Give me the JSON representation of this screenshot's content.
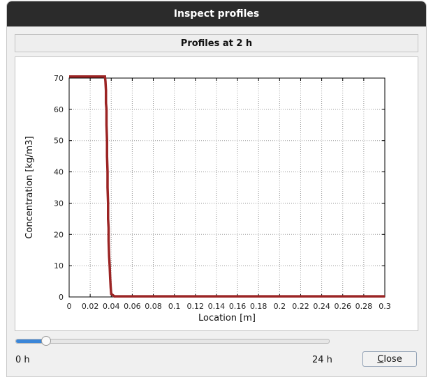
{
  "window": {
    "title": "Inspect profiles"
  },
  "header": {
    "title": "Profiles at 2 h"
  },
  "slider": {
    "min_label": "0 h",
    "max_label": "24 h",
    "value": 2,
    "min": 0,
    "max": 24,
    "accent": "#3b86d8"
  },
  "close_button": {
    "mnemonic": "C",
    "rest": "lose"
  },
  "chart_data": {
    "type": "line",
    "xlabel": "Location [m]",
    "ylabel": "Concentration [kg/m3]",
    "xlim": [
      0,
      0.3
    ],
    "ylim": [
      0,
      70
    ],
    "xticks": [
      "0",
      "0.02",
      "0.04",
      "0.06",
      "0.08",
      "0.1",
      "0.12",
      "0.14",
      "0.16",
      "0.18",
      "0.2",
      "0.22",
      "0.24",
      "0.26",
      "0.28",
      "0.3"
    ],
    "yticks": [
      "0",
      "10",
      "20",
      "30",
      "40",
      "50",
      "60",
      "70"
    ],
    "grid": true,
    "series": [
      {
        "color": "#9b2424",
        "x": [
          0,
          0.034,
          0.0345,
          0.035,
          0.035,
          0.0355,
          0.0355,
          0.036,
          0.036,
          0.0365,
          0.0365,
          0.037,
          0.037,
          0.0375,
          0.0375,
          0.038,
          0.0385,
          0.039,
          0.0395,
          0.04,
          0.043,
          0.3
        ],
        "y": [
          70.5,
          70.5,
          69,
          66,
          62,
          60,
          55,
          50,
          45,
          40,
          35,
          30,
          25,
          22,
          18,
          13,
          10,
          6,
          3,
          1,
          0.2,
          0.2
        ]
      }
    ]
  }
}
